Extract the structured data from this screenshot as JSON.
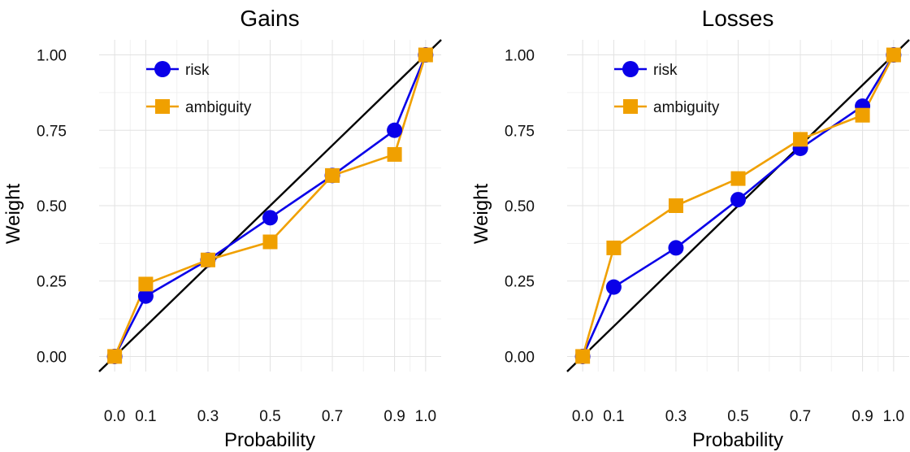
{
  "chart_data": [
    {
      "type": "line",
      "title": "Gains",
      "xlabel": "Probability",
      "ylabel": "Weight",
      "x_ticks": [
        0.0,
        0.1,
        0.3,
        0.5,
        0.7,
        0.9,
        1.0
      ],
      "x_tick_labels": [
        "0.0",
        "0.1",
        "0.3",
        "0.5",
        "0.7",
        "0.9",
        "1.0"
      ],
      "y_ticks": [
        0.0,
        0.25,
        0.5,
        0.75,
        1.0
      ],
      "y_tick_labels": [
        "0.00",
        "0.25",
        "0.50",
        "0.75",
        "1.00"
      ],
      "xlim": [
        -0.05,
        1.05
      ],
      "ylim": [
        -0.05,
        1.05
      ],
      "grid": true,
      "legend_position": "top-left",
      "reference_line": "identity",
      "series": [
        {
          "name": "risk",
          "color": "#0a00e8",
          "marker": "circle",
          "points": [
            [
              0.0,
              0.0
            ],
            [
              0.1,
              0.2
            ],
            [
              0.3,
              0.32
            ],
            [
              0.5,
              0.46
            ],
            [
              0.7,
              0.6
            ],
            [
              0.9,
              0.75
            ],
            [
              1.0,
              1.0
            ]
          ]
        },
        {
          "name": "ambiguity",
          "color": "#f0a000",
          "marker": "square",
          "points": [
            [
              0.0,
              0.0
            ],
            [
              0.1,
              0.24
            ],
            [
              0.3,
              0.32
            ],
            [
              0.5,
              0.38
            ],
            [
              0.7,
              0.6
            ],
            [
              0.9,
              0.67
            ],
            [
              1.0,
              1.0
            ]
          ]
        }
      ]
    },
    {
      "type": "line",
      "title": "Losses",
      "xlabel": "Probability",
      "ylabel": "Weight",
      "x_ticks": [
        0.0,
        0.1,
        0.3,
        0.5,
        0.7,
        0.9,
        1.0
      ],
      "x_tick_labels": [
        "0.0",
        "0.1",
        "0.3",
        "0.5",
        "0.7",
        "0.9",
        "1.0"
      ],
      "y_ticks": [
        0.0,
        0.25,
        0.5,
        0.75,
        1.0
      ],
      "y_tick_labels": [
        "0.00",
        "0.25",
        "0.50",
        "0.75",
        "1.00"
      ],
      "xlim": [
        -0.05,
        1.05
      ],
      "ylim": [
        -0.05,
        1.05
      ],
      "grid": true,
      "legend_position": "top-left",
      "reference_line": "identity",
      "series": [
        {
          "name": "risk",
          "color": "#0a00e8",
          "marker": "circle",
          "points": [
            [
              0.0,
              0.0
            ],
            [
              0.1,
              0.23
            ],
            [
              0.3,
              0.36
            ],
            [
              0.5,
              0.52
            ],
            [
              0.7,
              0.69
            ],
            [
              0.9,
              0.83
            ],
            [
              1.0,
              1.0
            ]
          ]
        },
        {
          "name": "ambiguity",
          "color": "#f0a000",
          "marker": "square",
          "points": [
            [
              0.0,
              0.0
            ],
            [
              0.1,
              0.36
            ],
            [
              0.3,
              0.5
            ],
            [
              0.5,
              0.59
            ],
            [
              0.7,
              0.72
            ],
            [
              0.9,
              0.8
            ],
            [
              1.0,
              1.0
            ]
          ]
        }
      ]
    }
  ]
}
